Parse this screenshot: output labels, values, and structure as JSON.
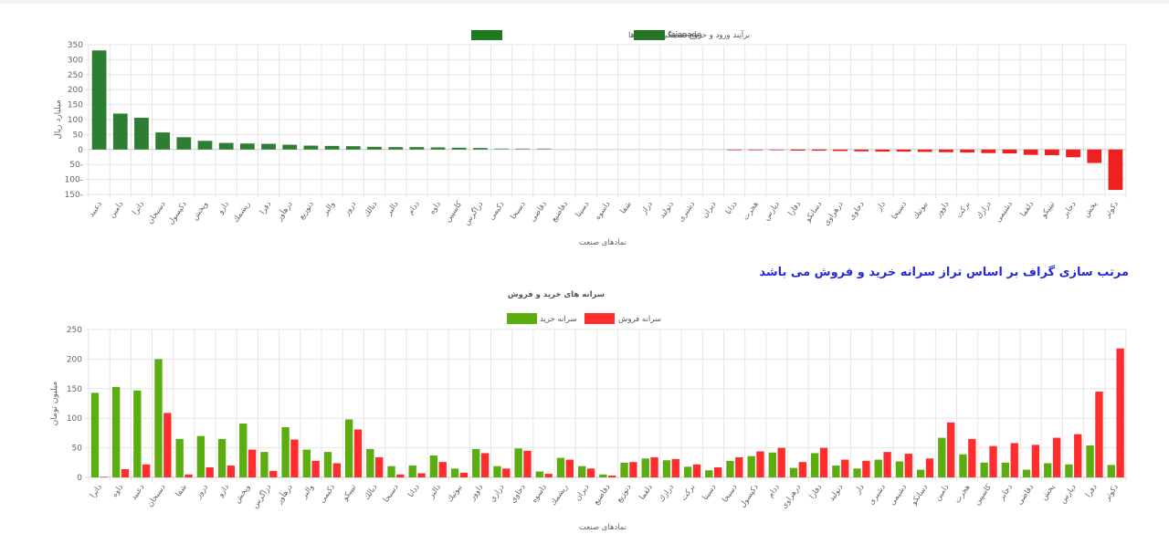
{
  "note": "مرتب سازی گراف بر اساس تراز سرانه خرید و فروش می باشد",
  "colors": {
    "positive": "#2d7d32",
    "negative": "#ee2020",
    "buy": "#5cad0f",
    "sell": "#ff2d2d",
    "grid": "#e6e6e6",
    "axis_text": "#666666",
    "note": "#2a2ad6"
  },
  "chart_data": [
    {
      "type": "bar",
      "title": "",
      "legend": [
        {
          "label": "iaiaoade",
          "color": "#1e7a1e"
        },
        {
          "label": "برآیند ورود و خروج نقدینگی حقیقی ها",
          "color": "#1e7a1e"
        }
      ],
      "legend_position": "top",
      "xlabel": "نمادهای صنعت",
      "ylabel": "میلیارد ریال",
      "ylim": [
        -150,
        350
      ],
      "yticks": [
        350,
        300,
        250,
        200,
        150,
        100,
        50,
        0,
        -50,
        -100,
        -150
      ],
      "ytick_labels": [
        "350",
        "300",
        "250",
        "200",
        "150",
        "100",
        "50",
        "0",
        "50-",
        "100-",
        "150-"
      ],
      "grid": true,
      "categories": [
        "دعبید",
        "دامین",
        "داترا",
        "دسبحان",
        "دکپسول",
        "وپخش",
        "دارو",
        "ریشمك",
        "دفرا",
        "درهآور",
        "دتوزیع",
        "والبر",
        "دروز",
        "دبالك",
        "دالبر",
        "ددام",
        "داوه",
        "کاسپین",
        "دزاگرس",
        "دکیمی",
        "دسبحا",
        "دقاضی",
        "دفاضیع",
        "دسینا",
        "داسوه",
        "شفا",
        "دراز",
        "دتولید",
        "دشیری",
        "دیران",
        "ددانا",
        "هجرت",
        "دپارس",
        "دفارا",
        "دسانکو",
        "درهراوی",
        "دحاوی",
        "دار",
        "دسیحا",
        "بیوتیك",
        "داوور",
        "برکت",
        "درازك",
        "دشیمی",
        "دلقما",
        "تیپیکو",
        "دجابر",
        "پخش",
        "دکوثر"
      ],
      "values": [
        331,
        120,
        106,
        57,
        41,
        29,
        22,
        20,
        19,
        16,
        13,
        12,
        11,
        9,
        8,
        8,
        7,
        6,
        5,
        2,
        1,
        1,
        0,
        0,
        0,
        0,
        0,
        0,
        0,
        0,
        -1,
        -2,
        -2,
        -3,
        -4,
        -5,
        -6,
        -7,
        -7,
        -8,
        -9,
        -10,
        -12,
        -13,
        -18,
        -19,
        -26,
        -45,
        -135
      ]
    },
    {
      "type": "bar",
      "title": "سرانه های خرید و فروش",
      "legend_position": "top",
      "xlabel": "نمادهای صنعت",
      "ylabel": "میلیون تومان",
      "ylim": [
        0,
        250
      ],
      "yticks": [
        250,
        200,
        150,
        100,
        50,
        0
      ],
      "grid": true,
      "categories": [
        "داترا",
        "داوه",
        "دعبید",
        "دسبحان",
        "شفا",
        "دروز",
        "دارو",
        "وپخش",
        "دزاگرس",
        "درهآور",
        "والبر",
        "دکیمی",
        "تیپیکو",
        "دبالك",
        "دسبحا",
        "ددانا",
        "دالبر",
        "بیوتیك",
        "داوور",
        "درازي",
        "دحاوي",
        "داسوه",
        "ریشمك",
        "دیران",
        "دفاضیع",
        "دتوزیع",
        "دلقما",
        "درازك",
        "برکت",
        "دسینا",
        "دسیحا",
        "دکپسول",
        "ددام",
        "درهراوی",
        "دفارا",
        "دتولید",
        "دار",
        "دشیری",
        "دشیمی",
        "دسانکو",
        "دامین",
        "هجرت",
        "کاسپین",
        "دجابر",
        "دقاضی",
        "پخش",
        "دپارس",
        "دفرا",
        "دکوثر"
      ],
      "series": [
        {
          "name": "سرانه خرید",
          "color": "#5cad0f",
          "values": [
            143,
            153,
            147,
            200,
            65,
            70,
            65,
            91,
            43,
            85,
            47,
            43,
            98,
            48,
            19,
            20,
            37,
            15,
            48,
            19,
            49,
            10,
            33,
            19,
            5,
            25,
            32,
            29,
            18,
            12,
            28,
            36,
            42,
            16,
            41,
            20,
            15,
            30,
            27,
            13,
            67,
            39,
            25,
            25,
            13,
            24,
            22,
            54,
            21
          ]
        },
        {
          "name": "سرانه فروش",
          "color": "#ff2d2d",
          "values": [
            1,
            14,
            22,
            109,
            5,
            17,
            20,
            47,
            11,
            64,
            28,
            24,
            81,
            34,
            5,
            7,
            26,
            8,
            41,
            15,
            45,
            6,
            30,
            15,
            3,
            26,
            34,
            31,
            22,
            17,
            34,
            44,
            50,
            26,
            50,
            30,
            28,
            43,
            40,
            32,
            93,
            65,
            53,
            58,
            55,
            67,
            73,
            145,
            218
          ]
        }
      ]
    }
  ]
}
